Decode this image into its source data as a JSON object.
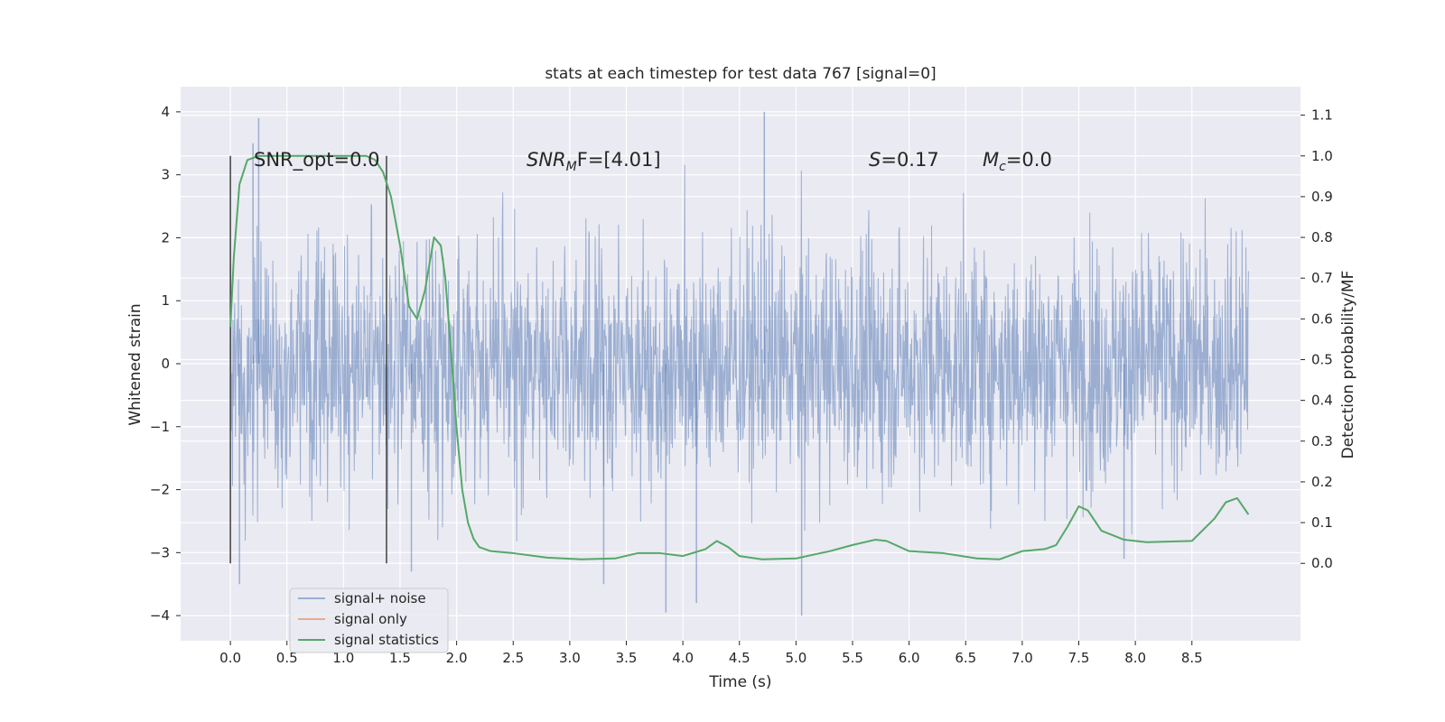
{
  "chart_data": {
    "type": "line",
    "title": "stats at each timestep for test data 767 [signal=0]",
    "xlabel": "Time (s)",
    "ylabel_left": "Whitened strain",
    "ylabel_right": "Detection probability/MF",
    "xlim": [
      -0.44,
      9.46
    ],
    "ylim_left": [
      -4.4,
      4.4
    ],
    "ylim_right": [
      -0.19,
      1.17
    ],
    "x_ticks": [
      "0.0",
      "0.5",
      "1.0",
      "1.5",
      "2.0",
      "2.5",
      "3.0",
      "3.5",
      "4.0",
      "4.5",
      "5.0",
      "5.5",
      "6.0",
      "6.5",
      "7.0",
      "7.5",
      "8.0",
      "8.5"
    ],
    "y_ticks_left": [
      "4",
      "3",
      "2",
      "1",
      "0",
      "−1",
      "−2",
      "−3",
      "−4"
    ],
    "y_ticks_right": [
      "1.1",
      "1.0",
      "0.9",
      "0.8",
      "0.7",
      "0.6",
      "0.5",
      "0.4",
      "0.3",
      "0.2",
      "0.1",
      "0.0"
    ],
    "grid": true,
    "legend_position": "lower-left",
    "annotations": {
      "snr_opt": "SNR_opt=0.0",
      "snr_mf_main": "SNR",
      "snr_mf_sub": "M",
      "snr_mf_tail": "F=[4.01]",
      "s_main": "S",
      "s_tail": "=0.17",
      "mc_main": "M",
      "mc_sub": "c",
      "mc_tail": "=0.0"
    },
    "vertical_markers_x": [
      0.0,
      1.38
    ],
    "series": [
      {
        "name": "signal+ noise",
        "color": "#4c72b0",
        "description": "dense whitened strain noise, roughly gaussian with std ~1, t from 0 to 9 s",
        "peak_values": [
          [
            0.2,
            3.5
          ],
          [
            0.25,
            3.9
          ],
          [
            0.08,
            -3.5
          ],
          [
            1.6,
            -3.3
          ],
          [
            3.3,
            -3.5
          ],
          [
            3.85,
            -3.95
          ],
          [
            4.12,
            -3.8
          ],
          [
            4.72,
            4.0
          ],
          [
            5.05,
            -4.0
          ],
          [
            7.9,
            -3.1
          ]
        ]
      },
      {
        "name": "signal only",
        "color": "#dd8452",
        "points": []
      },
      {
        "name": "signal statistics",
        "color": "#55a868",
        "x": [
          0.0,
          0.03,
          0.08,
          0.15,
          0.25,
          0.4,
          0.6,
          0.8,
          1.0,
          1.1,
          1.2,
          1.28,
          1.35,
          1.42,
          1.5,
          1.58,
          1.65,
          1.72,
          1.8,
          1.86,
          1.9,
          1.95,
          2.0,
          2.05,
          2.1,
          2.15,
          2.2,
          2.3,
          2.5,
          2.8,
          3.1,
          3.4,
          3.6,
          3.8,
          4.0,
          4.2,
          4.3,
          4.4,
          4.5,
          4.7,
          5.0,
          5.3,
          5.5,
          5.7,
          5.8,
          6.0,
          6.3,
          6.6,
          6.8,
          7.0,
          7.2,
          7.3,
          7.4,
          7.5,
          7.58,
          7.7,
          7.9,
          8.1,
          8.5,
          8.7,
          8.8,
          8.9,
          9.0
        ],
        "values": [
          0.58,
          0.75,
          0.93,
          0.99,
          1.0,
          1.0,
          1.0,
          1.0,
          1.0,
          1.0,
          1.0,
          0.99,
          0.96,
          0.9,
          0.78,
          0.63,
          0.6,
          0.67,
          0.8,
          0.78,
          0.7,
          0.52,
          0.33,
          0.18,
          0.1,
          0.06,
          0.04,
          0.03,
          0.025,
          0.014,
          0.01,
          0.012,
          0.025,
          0.025,
          0.018,
          0.035,
          0.055,
          0.04,
          0.018,
          0.01,
          0.012,
          0.03,
          0.045,
          0.058,
          0.055,
          0.03,
          0.025,
          0.012,
          0.01,
          0.03,
          0.035,
          0.045,
          0.09,
          0.14,
          0.13,
          0.08,
          0.058,
          0.052,
          0.055,
          0.11,
          0.15,
          0.16,
          0.12
        ]
      }
    ]
  }
}
